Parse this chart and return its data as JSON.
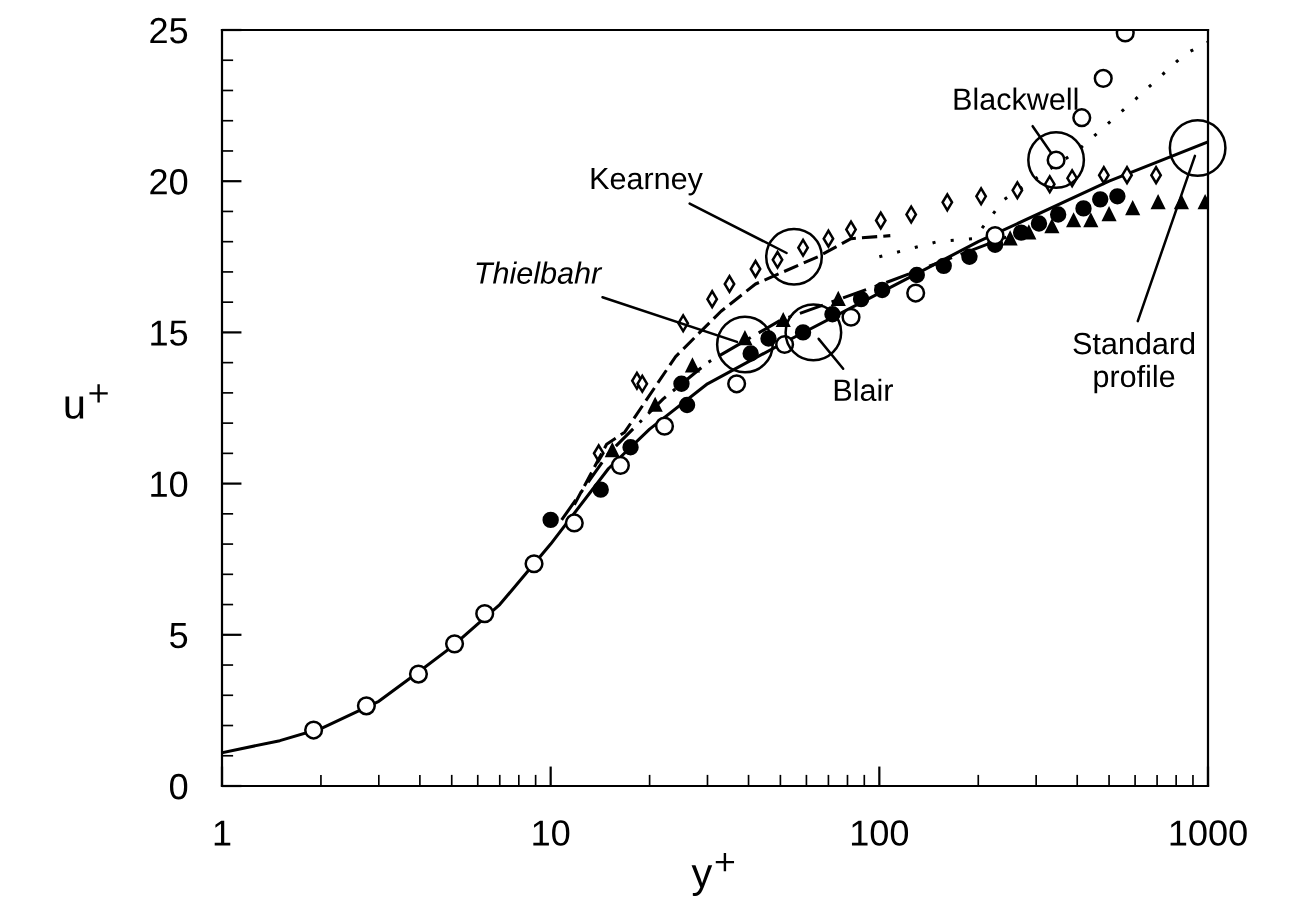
{
  "chart_data": {
    "type": "line",
    "xlabel": "y$^{+}$",
    "ylabel": "u$^{+}$",
    "log": "x",
    "xlim": [
      1,
      1000
    ],
    "xticks": [
      1,
      10,
      100,
      1000
    ],
    "ylim": [
      0,
      25
    ],
    "yticks": [
      0,
      5,
      10,
      15,
      20,
      25
    ],
    "grid": false,
    "series": [
      {
        "line_style": "solid",
        "marker": "none",
        "color": "#000000",
        "x": [
          1,
          1.5,
          2,
          3,
          4,
          5,
          7,
          10,
          15,
          20,
          30,
          50,
          100,
          200,
          500,
          1000
        ],
        "values": [
          1.1,
          1.5,
          1.9,
          2.8,
          3.8,
          4.6,
          6.0,
          8.0,
          10.5,
          11.8,
          13.3,
          14.6,
          16.3,
          18.0,
          20.0,
          21.3
        ]
      },
      {
        "line_style": "dotted",
        "marker": "none",
        "color": "#000000",
        "x": [
          100,
          150,
          194,
          240,
          400,
          600,
          850,
          1000
        ],
        "values": [
          17.5,
          18.0,
          18.1,
          19.4,
          21.0,
          22.7,
          24.2,
          24.6
        ]
      },
      {
        "type": "scatter",
        "marker": "circle",
        "color": "#ffffff",
        "x": [
          345,
          413,
          480,
          560
        ],
        "values": [
          20.7,
          22.1,
          23.4,
          24.9
        ]
      },
      {
        "type": "scatter",
        "marker": "diamond",
        "color": "#ffffff",
        "x": [
          14,
          18.3,
          19,
          25.3,
          31,
          35,
          42,
          49,
          58.6,
          70,
          82,
          101,
          125,
          161,
          204,
          263,
          330,
          386,
          482,
          567,
          695
        ],
        "values": [
          11.0,
          13.4,
          13.3,
          15.3,
          16.1,
          16.6,
          17.1,
          17.4,
          17.8,
          18.1,
          18.4,
          18.7,
          18.9,
          19.3,
          19.5,
          19.7,
          19.9,
          20.1,
          20.2,
          20.2,
          20.2
        ]
      },
      {
        "line_style": "dashed",
        "marker": "none",
        "color": "#000000",
        "x": [
          11.8,
          14.8,
          16.8,
          20.8,
          24,
          33,
          42,
          65,
          82,
          108
        ],
        "values": [
          9.3,
          11.3,
          11.7,
          13.2,
          14.2,
          15.7,
          16.6,
          17.5,
          18.1,
          18.2
        ]
      },
      {
        "line_style": "dashdot",
        "marker": "none",
        "color": "#000000",
        "x": [
          10.8,
          15,
          22,
          30,
          50,
          108,
          250
        ],
        "values": [
          8.8,
          11.0,
          12.8,
          14.0,
          15.4,
          16.7,
          18.2
        ]
      },
      {
        "type": "scatter",
        "marker": "triangle",
        "color": "#000000",
        "x": [
          15.4,
          20.8,
          27,
          39,
          51,
          75,
          250,
          285,
          335,
          390,
          440,
          500,
          590,
          705,
          830,
          980
        ],
        "values": [
          11.1,
          12.6,
          13.9,
          14.8,
          15.4,
          16.1,
          18.1,
          18.3,
          18.5,
          18.7,
          18.7,
          18.9,
          19.1,
          19.3,
          19.3,
          19.3
        ]
      },
      {
        "type": "scatter",
        "marker": "circle",
        "color": "#000000",
        "x": [
          10,
          14.2,
          17.5,
          25,
          26,
          40.6,
          46,
          58.6,
          72,
          88,
          102,
          130,
          157,
          188,
          225,
          270,
          306,
          350,
          418,
          470,
          530
        ],
        "values": [
          8.8,
          9.8,
          11.2,
          13.3,
          12.6,
          14.3,
          14.8,
          15.0,
          15.6,
          16.1,
          16.4,
          16.9,
          17.2,
          17.5,
          17.9,
          18.3,
          18.6,
          18.9,
          19.1,
          19.4,
          19.5
        ]
      },
      {
        "type": "scatter",
        "marker": "circle",
        "color": "#ffffff",
        "x": [
          1.9,
          2.75,
          3.96,
          5.1,
          6.3,
          8.9,
          11.8,
          16.3,
          22.2,
          36.8,
          51.5,
          82,
          129,
          225
        ],
        "values": [
          1.85,
          2.65,
          3.7,
          4.7,
          5.7,
          7.35,
          8.7,
          10.6,
          11.9,
          13.3,
          14.6,
          15.5,
          16.3,
          18.2
        ]
      }
    ],
    "annotations": [
      {
        "text": "Blackwell",
        "x": 345,
        "y": 20.7
      },
      {
        "text": "Kearney",
        "x": 55,
        "y": 17.5
      },
      {
        "text": "Thielbahr",
        "x": 39,
        "y": 14.6
      },
      {
        "text": "Blair",
        "x": 63,
        "y": 15.0
      },
      {
        "text": "Standard\nprofile",
        "x": 930,
        "y": 21.1
      }
    ]
  }
}
